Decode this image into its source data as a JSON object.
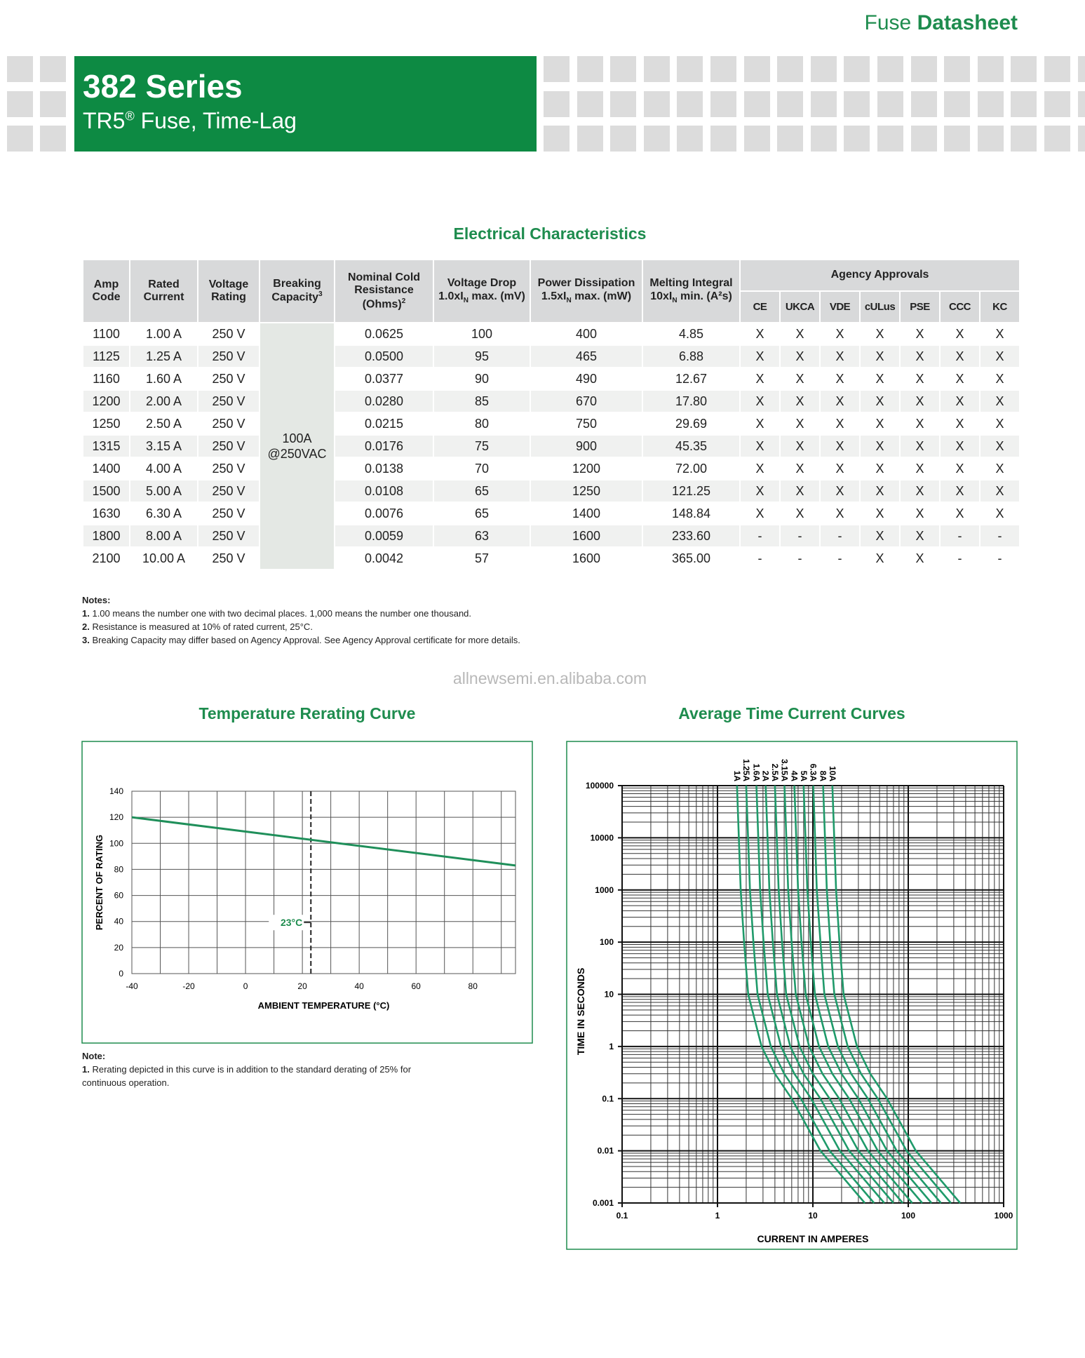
{
  "header": {
    "brand_light": "Fuse",
    "brand_bold": "Datasheet",
    "series": "382 Series",
    "subtitle": "TR5",
    "subtitle_sup": "®",
    "subtitle_rest": " Fuse, Time-Lag"
  },
  "table": {
    "title": "Electrical Characteristics",
    "columns": [
      {
        "text": "Amp Code"
      },
      {
        "text": "Rated Current"
      },
      {
        "text": "Voltage Rating"
      },
      {
        "text": "Breaking Capacity",
        "sup": "3"
      },
      {
        "text": "Nominal Cold Resistance (Ohms)",
        "sup": "2"
      },
      {
        "text": "Voltage Drop 1.0xI",
        "sub": "N",
        "after": " max. (mV)"
      },
      {
        "text": "Power Dissipation 1.5xI",
        "sub": "N",
        "after": " max. (mW)"
      },
      {
        "text": "Melting Integral 10xI",
        "sub": "N",
        "after": " min. (A²s)"
      }
    ],
    "agency_header": "Agency Approvals",
    "agency_marks": [
      "CE",
      "UKCA",
      "VDE",
      "cULus",
      "PSE",
      "CCC",
      "KC"
    ],
    "breaking_capacity": "100A @250VAC",
    "rows": [
      [
        "1100",
        "1.00 A",
        "250 V",
        "0.0625",
        "100",
        "400",
        "4.85",
        "X",
        "X",
        "X",
        "X",
        "X",
        "X",
        "X"
      ],
      [
        "1125",
        "1.25 A",
        "250 V",
        "0.0500",
        "95",
        "465",
        "6.88",
        "X",
        "X",
        "X",
        "X",
        "X",
        "X",
        "X"
      ],
      [
        "1160",
        "1.60 A",
        "250 V",
        "0.0377",
        "90",
        "490",
        "12.67",
        "X",
        "X",
        "X",
        "X",
        "X",
        "X",
        "X"
      ],
      [
        "1200",
        "2.00 A",
        "250 V",
        "0.0280",
        "85",
        "670",
        "17.80",
        "X",
        "X",
        "X",
        "X",
        "X",
        "X",
        "X"
      ],
      [
        "1250",
        "2.50 A",
        "250 V",
        "0.0215",
        "80",
        "750",
        "29.69",
        "X",
        "X",
        "X",
        "X",
        "X",
        "X",
        "X"
      ],
      [
        "1315",
        "3.15 A",
        "250 V",
        "0.0176",
        "75",
        "900",
        "45.35",
        "X",
        "X",
        "X",
        "X",
        "X",
        "X",
        "X"
      ],
      [
        "1400",
        "4.00 A",
        "250 V",
        "0.0138",
        "70",
        "1200",
        "72.00",
        "X",
        "X",
        "X",
        "X",
        "X",
        "X",
        "X"
      ],
      [
        "1500",
        "5.00 A",
        "250 V",
        "0.0108",
        "65",
        "1250",
        "121.25",
        "X",
        "X",
        "X",
        "X",
        "X",
        "X",
        "X"
      ],
      [
        "1630",
        "6.30 A",
        "250 V",
        "0.0076",
        "65",
        "1400",
        "148.84",
        "X",
        "X",
        "X",
        "X",
        "X",
        "X",
        "X"
      ],
      [
        "1800",
        "8.00 A",
        "250 V",
        "0.0059",
        "63",
        "1600",
        "233.60",
        "-",
        "-",
        "-",
        "X",
        "X",
        "-",
        "-"
      ],
      [
        "2100",
        "10.00 A",
        "250 V",
        "0.0042",
        "57",
        "1600",
        "365.00",
        "-",
        "-",
        "-",
        "X",
        "X",
        "-",
        "-"
      ]
    ]
  },
  "notes": {
    "title": "Notes:",
    "items": [
      {
        "number": "1.",
        "text": "1.00 means the number one with two decimal places. 1,000 means the number one thousand."
      },
      {
        "number": "2.",
        "text": "Resistance is measured at 10% of rated current, 25°C."
      },
      {
        "number": "3.",
        "text": "Breaking Capacity may differ based on Agency Approval.  See Agency Approval certificate for more details."
      }
    ]
  },
  "watermark": "allnewsemi.en.alibaba.com",
  "chart_data": [
    {
      "type": "line",
      "title": "Temperature Rerating Curve",
      "x_label": "AMBIENT TEMPERATURE (°C)",
      "y_label": "PERCENT OF RATING",
      "series": [
        {
          "color": "#1f8f5a",
          "x": [
            -40,
            95
          ],
          "values": [
            120,
            83
          ]
        }
      ],
      "xlim": [
        -40,
        95
      ],
      "ylim": [
        0,
        140
      ],
      "xticks": [
        -40,
        -20,
        0,
        20,
        40,
        60,
        80
      ],
      "yticks": [
        0,
        20,
        40,
        60,
        80,
        100,
        120,
        140
      ],
      "grid": true,
      "annotation": {
        "x": 23,
        "label": "23°C"
      }
    },
    {
      "type": "line",
      "title": "Average Time Current Curves",
      "x_label": "CURRENT IN AMPERES",
      "y_label": "TIME IN SECONDS",
      "xlog": true,
      "ylog": true,
      "grid": true,
      "xlim": [
        0.1,
        1000
      ],
      "ylim": [
        0.001,
        100000
      ],
      "xticks": [
        0.1,
        1,
        10,
        100,
        1000
      ],
      "yticks": [
        0.001,
        0.01,
        0.1,
        1,
        10,
        100,
        1000,
        10000,
        100000
      ],
      "series": [
        {
          "name": "1A",
          "color": "#1f9a6a",
          "x": [
            1.6,
            1.75,
            1.9,
            2.1,
            2.9,
            4,
            6,
            12,
            35
          ],
          "values": [
            100000,
            1000,
            100,
            10,
            1,
            0.3,
            0.1,
            0.01,
            0.001
          ]
        },
        {
          "name": "1.25A",
          "color": "#1f9a6a",
          "x": [
            2,
            2.19,
            2.38,
            2.63,
            3.63,
            5,
            7.5,
            15,
            43.8
          ],
          "values": [
            100000,
            1000,
            100,
            10,
            1,
            0.3,
            0.1,
            0.01,
            0.001
          ]
        },
        {
          "name": "1.6A",
          "color": "#1f9a6a",
          "x": [
            2.56,
            2.8,
            3.04,
            3.36,
            4.64,
            6.4,
            9.6,
            19.2,
            56
          ],
          "values": [
            100000,
            1000,
            100,
            10,
            1,
            0.3,
            0.1,
            0.01,
            0.001
          ]
        },
        {
          "name": "2A",
          "color": "#1f9a6a",
          "x": [
            3.2,
            3.5,
            3.8,
            4.2,
            5.8,
            8,
            12,
            24,
            70
          ],
          "values": [
            100000,
            1000,
            100,
            10,
            1,
            0.3,
            0.1,
            0.01,
            0.001
          ]
        },
        {
          "name": "2.5A",
          "color": "#1f9a6a",
          "x": [
            4,
            4.38,
            4.75,
            5.25,
            7.25,
            10,
            15,
            30,
            87.5
          ],
          "values": [
            100000,
            1000,
            100,
            10,
            1,
            0.3,
            0.1,
            0.01,
            0.001
          ]
        },
        {
          "name": "3.15A",
          "color": "#1f9a6a",
          "x": [
            5.04,
            5.51,
            5.99,
            6.62,
            9.14,
            12.6,
            18.9,
            37.8,
            110
          ],
          "values": [
            100000,
            1000,
            100,
            10,
            1,
            0.3,
            0.1,
            0.01,
            0.001
          ]
        },
        {
          "name": "4A",
          "color": "#1f9a6a",
          "x": [
            6.4,
            7,
            7.6,
            8.4,
            11.6,
            16,
            24,
            48,
            140
          ],
          "values": [
            100000,
            1000,
            100,
            10,
            1,
            0.3,
            0.1,
            0.01,
            0.001
          ]
        },
        {
          "name": "5A",
          "color": "#1f9a6a",
          "x": [
            8,
            8.75,
            9.5,
            10.5,
            14.5,
            20,
            30,
            60,
            175
          ],
          "values": [
            100000,
            1000,
            100,
            10,
            1,
            0.3,
            0.1,
            0.01,
            0.001
          ]
        },
        {
          "name": "6.3A",
          "color": "#1f9a6a",
          "x": [
            10.1,
            11,
            12,
            13.2,
            18.3,
            25.2,
            37.8,
            75.6,
            220
          ],
          "values": [
            100000,
            1000,
            100,
            10,
            1,
            0.3,
            0.1,
            0.01,
            0.001
          ]
        },
        {
          "name": "8A",
          "color": "#1f9a6a",
          "x": [
            12.8,
            14,
            15.2,
            16.8,
            23.2,
            32,
            48,
            96,
            280
          ],
          "values": [
            100000,
            1000,
            100,
            10,
            1,
            0.3,
            0.1,
            0.01,
            0.001
          ]
        },
        {
          "name": "10A",
          "color": "#1f9a6a",
          "x": [
            16,
            17.5,
            19,
            21,
            29,
            40,
            60,
            120,
            350
          ],
          "values": [
            100000,
            1000,
            100,
            10,
            1,
            0.3,
            0.1,
            0.01,
            0.001
          ]
        }
      ]
    }
  ],
  "rerating_note": {
    "title": "Note:",
    "number": "1.",
    "text": "Rerating depicted in this curve is in addition to the standard derating of 25% for continuous operation."
  }
}
